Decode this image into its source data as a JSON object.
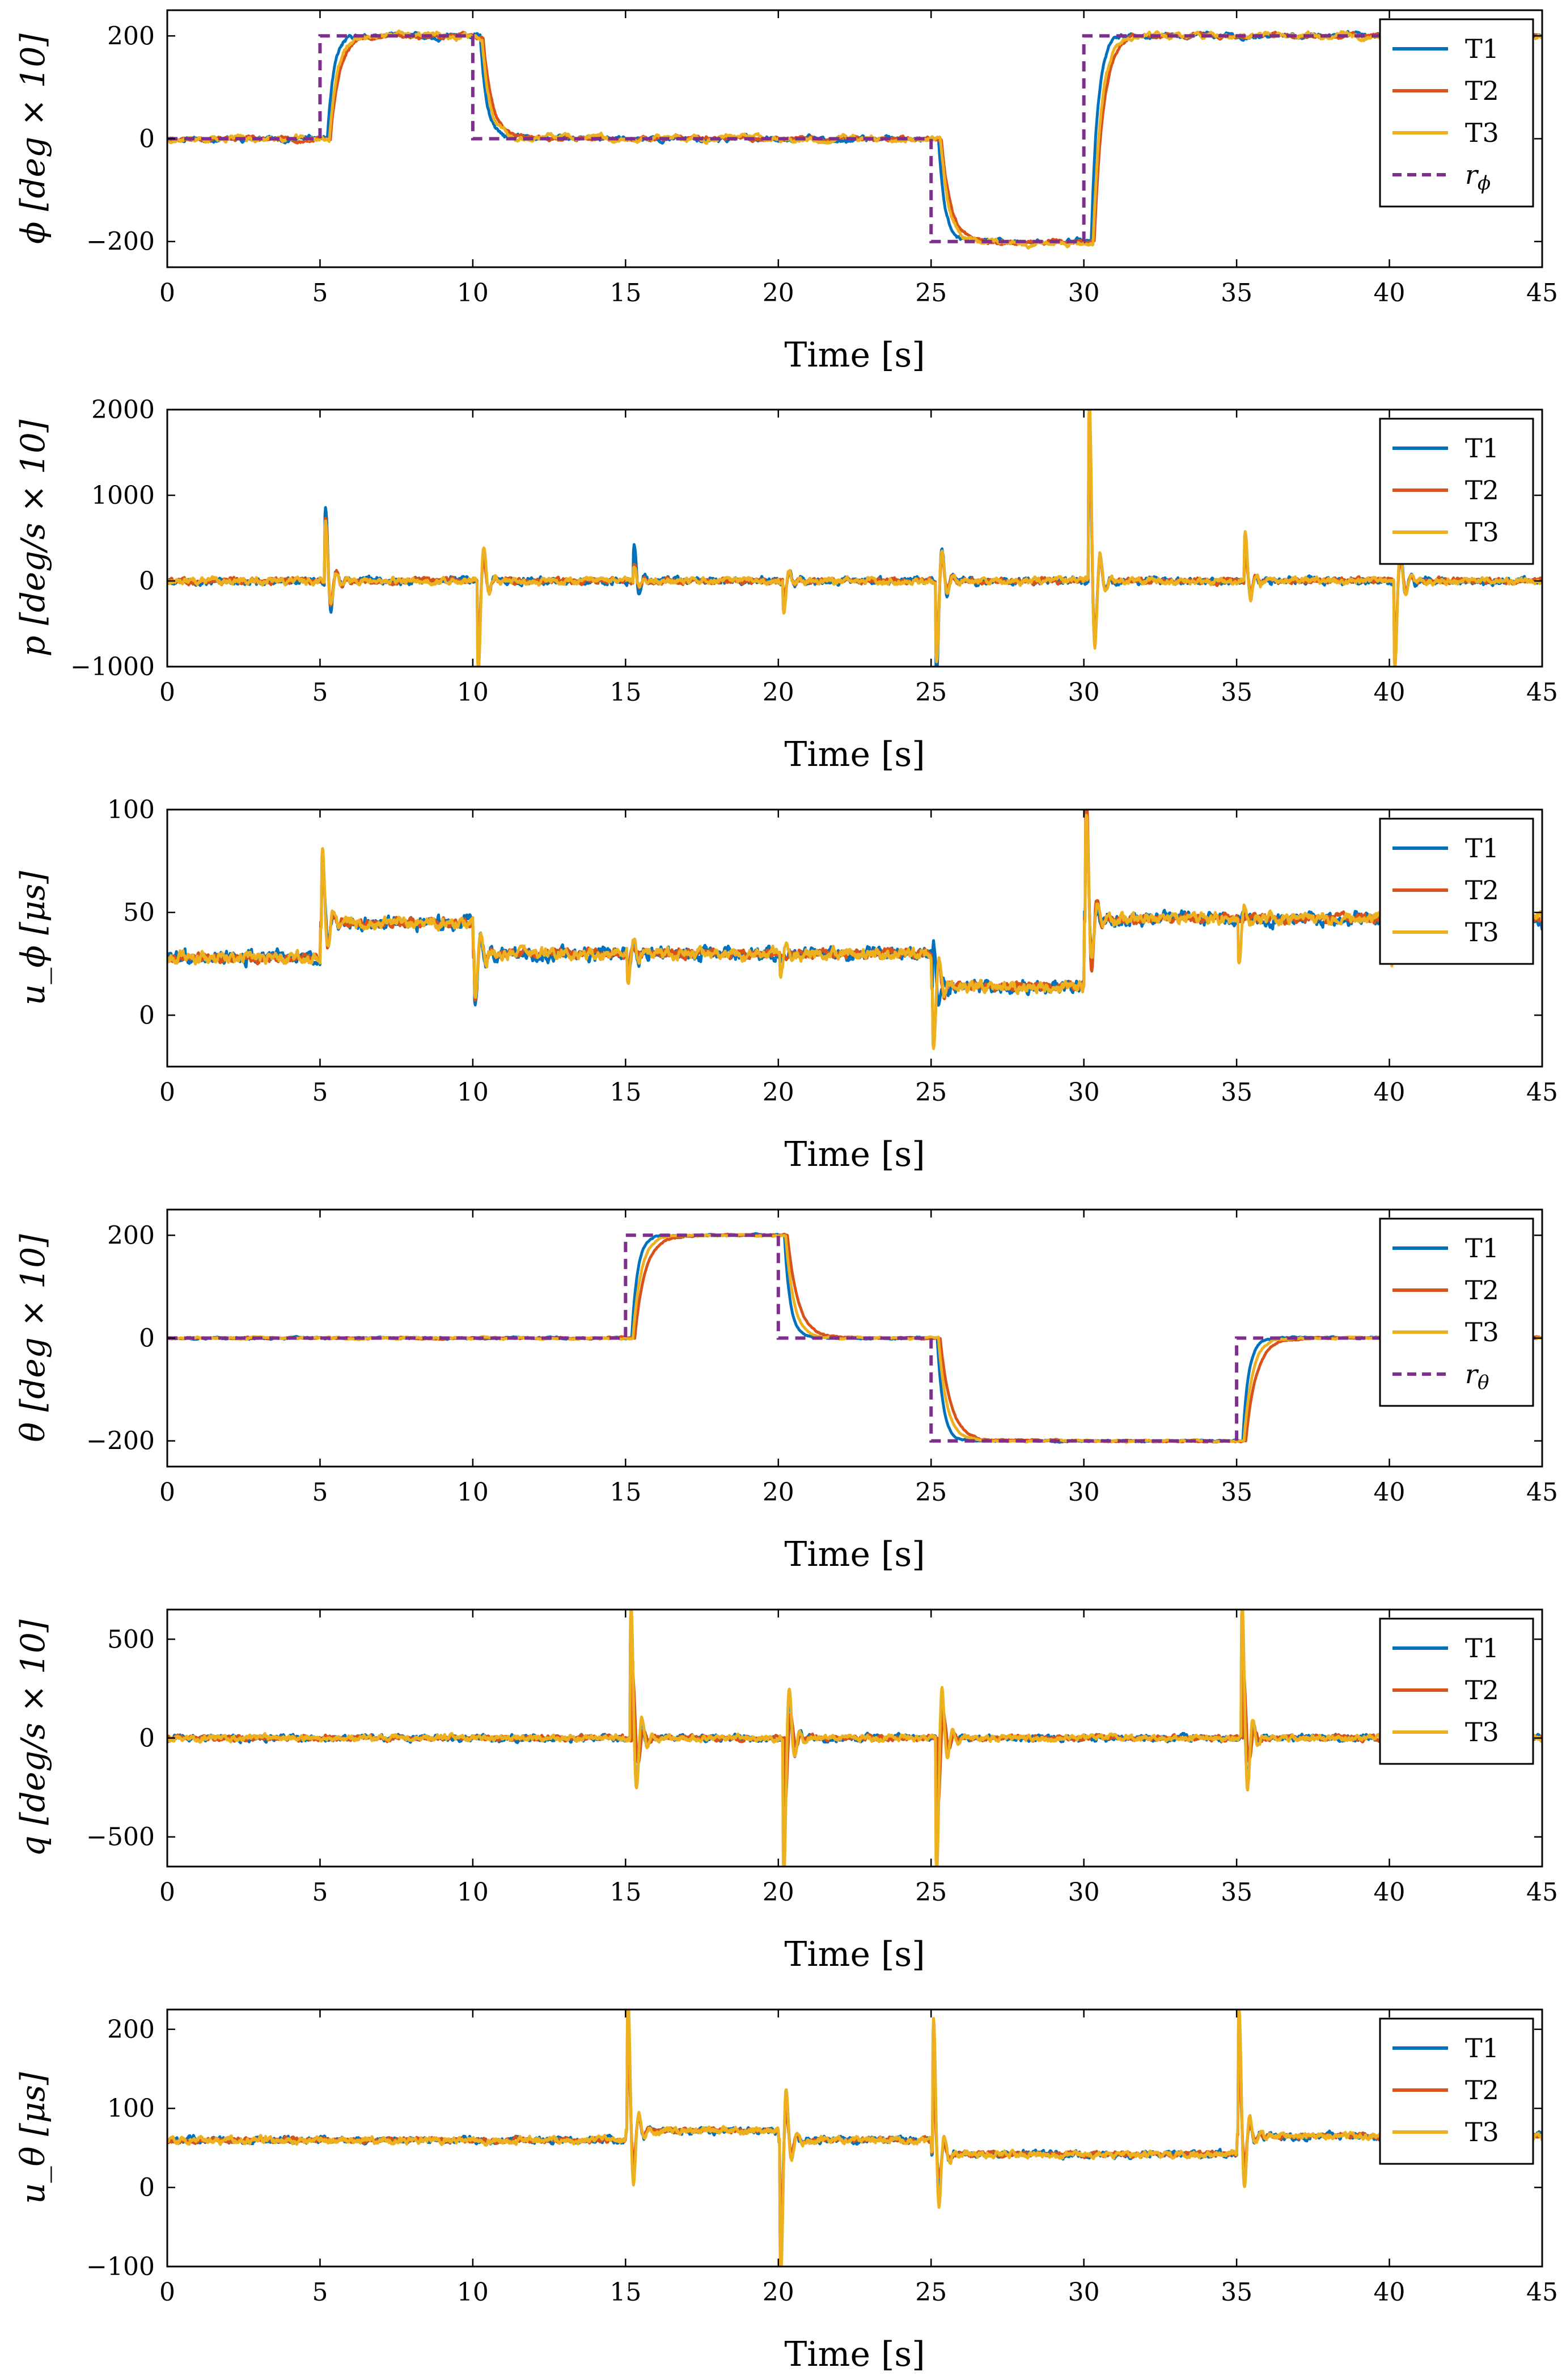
{
  "chart_data": [
    {
      "type": "line",
      "id": "phi",
      "xlabel": "Time [s]",
      "ylabel": "ϕ [deg × 10]",
      "xlim": [
        0,
        45
      ],
      "ylim": [
        -250,
        250
      ],
      "xticks": [
        0,
        5,
        10,
        15,
        20,
        25,
        30,
        35,
        40,
        45
      ],
      "yticks": [
        -200,
        0,
        200
      ],
      "ytick_labels": [
        "−200",
        "0",
        "200"
      ],
      "legend": [
        "T1",
        "T2",
        "T3",
        "r_ϕ"
      ],
      "legend_labels": [
        "T1",
        "T2",
        "T3",
        "r"
      ],
      "legend_subscripts": [
        "",
        "",
        "",
        "ϕ"
      ],
      "reference": {
        "name": "r_ϕ",
        "color": "#7E2F8E",
        "dashed": true,
        "times": [
          0,
          5,
          10,
          25,
          30,
          45
        ],
        "values": [
          0,
          200,
          0,
          -200,
          200,
          200
        ]
      },
      "series": [
        {
          "name": "T1",
          "color": "#0072BD",
          "delay": 0.25,
          "tau": 0.22,
          "noise": 6,
          "spikes": [],
          "seed": 11
        },
        {
          "name": "T2",
          "color": "#D95319",
          "delay": 0.35,
          "tau": 0.3,
          "noise": 5,
          "spikes": [],
          "seed": 23
        },
        {
          "name": "T3",
          "color": "#EDB120",
          "delay": 0.3,
          "tau": 0.28,
          "noise": 7,
          "spikes": [],
          "seed": 37
        }
      ]
    },
    {
      "type": "line",
      "id": "p",
      "xlabel": "Time [s]",
      "ylabel": "p [deg/s × 10]",
      "xlim": [
        0,
        45
      ],
      "ylim": [
        -1000,
        2000
      ],
      "xticks": [
        0,
        5,
        10,
        15,
        20,
        25,
        30,
        35,
        40,
        45
      ],
      "yticks": [
        -1000,
        0,
        1000,
        2000
      ],
      "ytick_labels": [
        "−1000",
        "0",
        "1000",
        "2000"
      ],
      "legend": [
        "T1",
        "T2",
        "T3"
      ],
      "legend_labels": [
        "T1",
        "T2",
        "T3"
      ],
      "legend_subscripts": [
        "",
        "",
        ""
      ],
      "series": [
        {
          "name": "T1",
          "color": "#0072BD",
          "base": 0,
          "noise": 40,
          "seed": 5,
          "spikes": [
            [
              5.2,
              850
            ],
            [
              10.2,
              -900
            ],
            [
              15.3,
              400
            ],
            [
              20.2,
              -300
            ],
            [
              25.2,
              -1000
            ],
            [
              30.2,
              1600
            ],
            [
              35.3,
              450
            ],
            [
              40.2,
              -900
            ]
          ]
        },
        {
          "name": "T2",
          "color": "#D95319",
          "base": 0,
          "noise": 30,
          "seed": 8,
          "spikes": [
            [
              5.2,
              700
            ],
            [
              10.2,
              -700
            ],
            [
              15.3,
              200
            ],
            [
              20.2,
              -200
            ],
            [
              25.2,
              -700
            ],
            [
              30.2,
              1800
            ],
            [
              35.3,
              300
            ],
            [
              40.2,
              -700
            ]
          ]
        },
        {
          "name": "T3",
          "color": "#EDB120",
          "base": 0,
          "noise": 35,
          "seed": 13,
          "spikes": [
            [
              5.2,
              650
            ],
            [
              10.2,
              -1000
            ],
            [
              15.3,
              150
            ],
            [
              20.2,
              -350
            ],
            [
              25.2,
              -900
            ],
            [
              30.2,
              2000
            ],
            [
              35.3,
              550
            ],
            [
              40.2,
              -1000
            ]
          ]
        }
      ]
    },
    {
      "type": "line",
      "id": "u_phi",
      "xlabel": "Time [s]",
      "ylabel": "u_ϕ [μs]",
      "xlim": [
        0,
        45
      ],
      "ylim": [
        -25,
        100
      ],
      "xticks": [
        0,
        5,
        10,
        15,
        20,
        25,
        30,
        35,
        40,
        45
      ],
      "yticks": [
        0,
        50,
        100
      ],
      "ytick_labels": [
        "0",
        "50",
        "100"
      ],
      "legend": [
        "T1",
        "T2",
        "T3"
      ],
      "legend_labels": [
        "T1",
        "T2",
        "T3"
      ],
      "legend_subscripts": [
        "",
        "",
        ""
      ],
      "levels": {
        "times": [
          0,
          5,
          10,
          25,
          30,
          45
        ],
        "values": [
          28,
          45,
          30,
          14,
          47,
          45
        ]
      },
      "series": [
        {
          "name": "T1",
          "color": "#0072BD",
          "noise": 3,
          "seed": 3,
          "spikes": [
            [
              5.1,
              25
            ],
            [
              10.1,
              -25
            ],
            [
              15.1,
              -12
            ],
            [
              25.1,
              20
            ],
            [
              30.1,
              40
            ],
            [
              40.1,
              -15
            ]
          ]
        },
        {
          "name": "T2",
          "color": "#D95319",
          "noise": 2,
          "seed": 9,
          "spikes": [
            [
              5.1,
              30
            ],
            [
              10.1,
              -20
            ],
            [
              15.1,
              -8
            ],
            [
              25.1,
              -25
            ],
            [
              30.1,
              60
            ],
            [
              40.1,
              -12
            ]
          ]
        },
        {
          "name": "T3",
          "color": "#EDB120",
          "noise": 2.5,
          "seed": 15,
          "spikes": [
            [
              5.1,
              35
            ],
            [
              10.1,
              -22
            ],
            [
              15.1,
              -15
            ],
            [
              20.1,
              -10
            ],
            [
              25.1,
              -30
            ],
            [
              30.1,
              50
            ],
            [
              35.1,
              -20
            ],
            [
              40.1,
              -20
            ]
          ]
        }
      ]
    },
    {
      "type": "line",
      "id": "theta",
      "xlabel": "Time [s]",
      "ylabel": "θ [deg × 10]",
      "xlim": [
        0,
        45
      ],
      "ylim": [
        -250,
        250
      ],
      "xticks": [
        0,
        5,
        10,
        15,
        20,
        25,
        30,
        35,
        40,
        45
      ],
      "yticks": [
        -200,
        0,
        200
      ],
      "ytick_labels": [
        "−200",
        "0",
        "200"
      ],
      "legend": [
        "T1",
        "T2",
        "T3",
        "r_θ"
      ],
      "legend_labels": [
        "T1",
        "T2",
        "T3",
        "r"
      ],
      "legend_subscripts": [
        "",
        "",
        "",
        "θ"
      ],
      "reference": {
        "name": "r_θ",
        "color": "#7E2F8E",
        "dashed": true,
        "times": [
          0,
          15,
          20,
          25,
          35,
          45
        ],
        "values": [
          0,
          200,
          0,
          -200,
          0,
          0
        ]
      },
      "series": [
        {
          "name": "T1",
          "color": "#0072BD",
          "delay": 0.2,
          "tau": 0.2,
          "noise": 2,
          "spikes": [],
          "seed": 17
        },
        {
          "name": "T2",
          "color": "#D95319",
          "delay": 0.3,
          "tau": 0.35,
          "noise": 2,
          "spikes": [],
          "seed": 19
        },
        {
          "name": "T3",
          "color": "#EDB120",
          "delay": 0.25,
          "tau": 0.28,
          "noise": 2,
          "spikes": [],
          "seed": 29
        }
      ]
    },
    {
      "type": "line",
      "id": "q",
      "xlabel": "Time [s]",
      "ylabel": "q [deg/s × 10]",
      "xlim": [
        0,
        45
      ],
      "ylim": [
        -650,
        650
      ],
      "xticks": [
        0,
        5,
        10,
        15,
        20,
        25,
        30,
        35,
        40,
        45
      ],
      "yticks": [
        -500,
        0,
        500
      ],
      "ytick_labels": [
        "−500",
        "0",
        "500"
      ],
      "legend": [
        "T1",
        "T2",
        "T3"
      ],
      "legend_labels": [
        "T1",
        "T2",
        "T3"
      ],
      "legend_subscripts": [
        "",
        "",
        ""
      ],
      "series": [
        {
          "name": "T1",
          "color": "#0072BD",
          "base": 0,
          "noise": 15,
          "seed": 31,
          "spikes": [
            [
              15.2,
              600
            ],
            [
              20.2,
              -550
            ],
            [
              25.2,
              -500
            ],
            [
              35.2,
              550
            ]
          ]
        },
        {
          "name": "T2",
          "color": "#D95319",
          "base": 0,
          "noise": 12,
          "seed": 41,
          "spikes": [
            [
              15.25,
              330
            ],
            [
              20.25,
              -300
            ],
            [
              25.25,
              -330
            ],
            [
              35.25,
              300
            ]
          ]
        },
        {
          "name": "T3",
          "color": "#EDB120",
          "base": 0,
          "noise": 14,
          "seed": 43,
          "spikes": [
            [
              15.2,
              650
            ],
            [
              20.2,
              -650
            ],
            [
              25.2,
              -650
            ],
            [
              35.2,
              650
            ]
          ]
        }
      ]
    },
    {
      "type": "line",
      "id": "u_theta",
      "xlabel": "Time [s]",
      "ylabel": "u_θ [μs]",
      "xlim": [
        0,
        45
      ],
      "ylim": [
        -100,
        225
      ],
      "xticks": [
        0,
        5,
        10,
        15,
        20,
        25,
        30,
        35,
        40,
        45
      ],
      "yticks": [
        -100,
        0,
        100,
        200
      ],
      "ytick_labels": [
        "−100",
        "0",
        "100",
        "200"
      ],
      "legend": [
        "T1",
        "T2",
        "T3"
      ],
      "legend_labels": [
        "T1",
        "T2",
        "T3"
      ],
      "legend_subscripts": [
        "",
        "",
        ""
      ],
      "levels": {
        "times": [
          0,
          15,
          20,
          25,
          35,
          45
        ],
        "values": [
          60,
          72,
          60,
          42,
          65,
          60
        ]
      },
      "series": [
        {
          "name": "T1",
          "color": "#0072BD",
          "noise": 4,
          "seed": 47,
          "spikes": [
            [
              15.1,
              150
            ],
            [
              20.1,
              -150
            ],
            [
              25.1,
              130
            ],
            [
              35.1,
              140
            ]
          ]
        },
        {
          "name": "T2",
          "color": "#D95319",
          "noise": 3,
          "seed": 53,
          "spikes": [
            [
              15.1,
              100
            ],
            [
              20.1,
              -100
            ],
            [
              25.1,
              80
            ],
            [
              35.1,
              90
            ]
          ]
        },
        {
          "name": "T3",
          "color": "#EDB120",
          "noise": 4,
          "seed": 59,
          "spikes": [
            [
              15.1,
              165
            ],
            [
              20.1,
              -165
            ],
            [
              25.1,
              160
            ],
            [
              35.1,
              155
            ]
          ]
        }
      ]
    }
  ]
}
